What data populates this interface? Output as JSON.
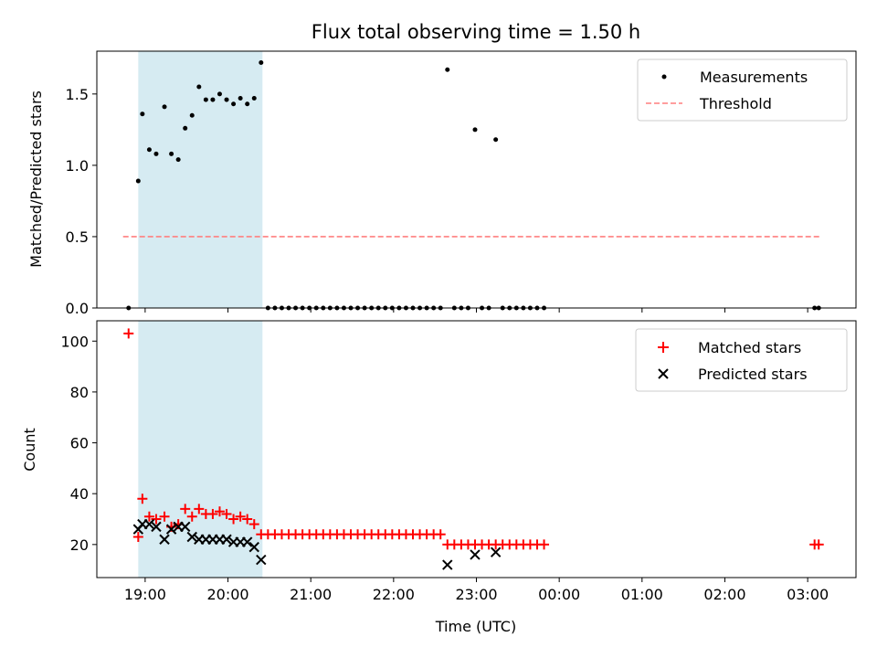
{
  "chart_data": [
    {
      "type": "scatter",
      "title": "Flux total observing time = 1.50 h",
      "ylabel": "Matched/Predicted stars",
      "xlabel": "",
      "xlim": [
        "18:25",
        "03:35"
      ],
      "ylim": [
        0,
        1.8
      ],
      "yticks": [
        "0.0",
        "0.5",
        "1.0",
        "1.5"
      ],
      "shaded_interval": [
        "18:55",
        "20:25"
      ],
      "shade_color": "#add8e6",
      "legend_position": "top-right",
      "series": [
        {
          "name": "Measurements",
          "style": "dots",
          "color": "#000000",
          "points": [
            [
              "18:48",
              0.0
            ],
            [
              "18:55",
              0.89
            ],
            [
              "18:58",
              1.36
            ],
            [
              "19:03",
              1.11
            ],
            [
              "19:08",
              1.08
            ],
            [
              "19:14",
              1.41
            ],
            [
              "19:19",
              1.08
            ],
            [
              "19:24",
              1.04
            ],
            [
              "19:29",
              1.26
            ],
            [
              "19:34",
              1.35
            ],
            [
              "19:39",
              1.55
            ],
            [
              "19:44",
              1.46
            ],
            [
              "19:49",
              1.46
            ],
            [
              "19:54",
              1.5
            ],
            [
              "19:59",
              1.46
            ],
            [
              "20:04",
              1.43
            ],
            [
              "20:09",
              1.47
            ],
            [
              "20:14",
              1.43
            ],
            [
              "20:19",
              1.47
            ],
            [
              "20:24",
              1.72
            ],
            [
              "20:29",
              0.0
            ],
            [
              "20:34",
              0.0
            ],
            [
              "20:39",
              0.0
            ],
            [
              "20:44",
              0.0
            ],
            [
              "20:49",
              0.0
            ],
            [
              "20:54",
              0.0
            ],
            [
              "20:59",
              0.0
            ],
            [
              "21:04",
              0.0
            ],
            [
              "21:09",
              0.0
            ],
            [
              "21:14",
              0.0
            ],
            [
              "21:19",
              0.0
            ],
            [
              "21:24",
              0.0
            ],
            [
              "21:29",
              0.0
            ],
            [
              "21:34",
              0.0
            ],
            [
              "21:39",
              0.0
            ],
            [
              "21:44",
              0.0
            ],
            [
              "21:49",
              0.0
            ],
            [
              "21:54",
              0.0
            ],
            [
              "21:59",
              0.0
            ],
            [
              "22:04",
              0.0
            ],
            [
              "22:09",
              0.0
            ],
            [
              "22:14",
              0.0
            ],
            [
              "22:19",
              0.0
            ],
            [
              "22:24",
              0.0
            ],
            [
              "22:29",
              0.0
            ],
            [
              "22:34",
              0.0
            ],
            [
              "22:39",
              1.67
            ],
            [
              "22:44",
              0.0
            ],
            [
              "22:49",
              0.0
            ],
            [
              "22:54",
              0.0
            ],
            [
              "22:59",
              1.25
            ],
            [
              "23:04",
              0.0
            ],
            [
              "23:09",
              0.0
            ],
            [
              "23:14",
              1.18
            ],
            [
              "23:19",
              0.0
            ],
            [
              "23:24",
              0.0
            ],
            [
              "23:29",
              0.0
            ],
            [
              "23:34",
              0.0
            ],
            [
              "23:39",
              0.0
            ],
            [
              "23:44",
              0.0
            ],
            [
              "23:49",
              0.0
            ],
            [
              "03:05",
              0.0
            ],
            [
              "03:08",
              0.0
            ]
          ]
        },
        {
          "name": "Threshold",
          "style": "dashed-line",
          "color": "#ff7f7f",
          "x": [
            "18:44",
            "03:10"
          ],
          "y": 0.5
        }
      ]
    },
    {
      "type": "scatter",
      "title": "",
      "ylabel": "Count",
      "xlabel": "Time (UTC)",
      "xlim": [
        "18:25",
        "03:35"
      ],
      "ylim": [
        7,
        108
      ],
      "yticks": [
        "20",
        "40",
        "60",
        "80",
        "100"
      ],
      "xticks": [
        "19:00",
        "20:00",
        "21:00",
        "22:00",
        "23:00",
        "00:00",
        "01:00",
        "02:00",
        "03:00"
      ],
      "shaded_interval": [
        "18:55",
        "20:25"
      ],
      "shade_color": "#add8e6",
      "legend_position": "top-right",
      "series": [
        {
          "name": "Matched stars",
          "marker": "plus",
          "color": "#ff0000",
          "points": [
            [
              "18:48",
              103
            ],
            [
              "18:55",
              23
            ],
            [
              "18:58",
              38
            ],
            [
              "19:03",
              31
            ],
            [
              "19:08",
              30
            ],
            [
              "19:14",
              31
            ],
            [
              "19:19",
              27
            ],
            [
              "19:24",
              28
            ],
            [
              "19:29",
              34
            ],
            [
              "19:34",
              31
            ],
            [
              "19:39",
              34
            ],
            [
              "19:44",
              32
            ],
            [
              "19:49",
              32
            ],
            [
              "19:54",
              33
            ],
            [
              "19:59",
              32
            ],
            [
              "20:04",
              30
            ],
            [
              "20:09",
              31
            ],
            [
              "20:14",
              30
            ],
            [
              "20:19",
              28
            ],
            [
              "20:24",
              24
            ],
            [
              "20:29",
              24
            ],
            [
              "20:34",
              24
            ],
            [
              "20:39",
              24
            ],
            [
              "20:44",
              24
            ],
            [
              "20:49",
              24
            ],
            [
              "20:54",
              24
            ],
            [
              "20:59",
              24
            ],
            [
              "21:04",
              24
            ],
            [
              "21:09",
              24
            ],
            [
              "21:14",
              24
            ],
            [
              "21:19",
              24
            ],
            [
              "21:24",
              24
            ],
            [
              "21:29",
              24
            ],
            [
              "21:34",
              24
            ],
            [
              "21:39",
              24
            ],
            [
              "21:44",
              24
            ],
            [
              "21:49",
              24
            ],
            [
              "21:54",
              24
            ],
            [
              "21:59",
              24
            ],
            [
              "22:04",
              24
            ],
            [
              "22:09",
              24
            ],
            [
              "22:14",
              24
            ],
            [
              "22:19",
              24
            ],
            [
              "22:24",
              24
            ],
            [
              "22:29",
              24
            ],
            [
              "22:34",
              24
            ],
            [
              "22:39",
              20
            ],
            [
              "22:44",
              20
            ],
            [
              "22:49",
              20
            ],
            [
              "22:54",
              20
            ],
            [
              "22:59",
              20
            ],
            [
              "23:04",
              20
            ],
            [
              "23:09",
              20
            ],
            [
              "23:14",
              20
            ],
            [
              "23:19",
              20
            ],
            [
              "23:24",
              20
            ],
            [
              "23:29",
              20
            ],
            [
              "23:34",
              20
            ],
            [
              "23:39",
              20
            ],
            [
              "23:44",
              20
            ],
            [
              "23:49",
              20
            ],
            [
              "03:05",
              20
            ],
            [
              "03:08",
              20
            ]
          ]
        },
        {
          "name": "Predicted stars",
          "marker": "x",
          "color": "#000000",
          "points": [
            [
              "18:55",
              26
            ],
            [
              "18:58",
              28
            ],
            [
              "19:03",
              28
            ],
            [
              "19:08",
              27
            ],
            [
              "19:14",
              22
            ],
            [
              "19:19",
              26
            ],
            [
              "19:24",
              27
            ],
            [
              "19:29",
              27
            ],
            [
              "19:34",
              23
            ],
            [
              "19:39",
              22
            ],
            [
              "19:44",
              22
            ],
            [
              "19:49",
              22
            ],
            [
              "19:54",
              22
            ],
            [
              "19:59",
              22
            ],
            [
              "20:04",
              21
            ],
            [
              "20:09",
              21
            ],
            [
              "20:14",
              21
            ],
            [
              "20:19",
              19
            ],
            [
              "20:24",
              14
            ],
            [
              "22:39",
              12
            ],
            [
              "22:59",
              16
            ],
            [
              "23:14",
              17
            ]
          ]
        }
      ]
    }
  ]
}
